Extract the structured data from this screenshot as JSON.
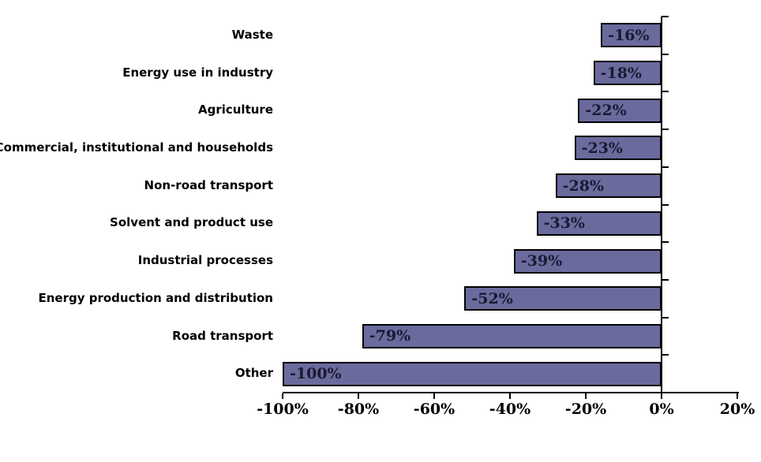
{
  "chart_data": {
    "type": "bar",
    "orientation": "horizontal",
    "title": "",
    "xlabel": "",
    "ylabel": "",
    "grid": false,
    "legend": false,
    "background_color": "#FFFFFF",
    "bar_fill_color": "#6A6A9D",
    "bar_border_color": "#000000",
    "value_label_color": "#1A1A33",
    "axis_color": "#000000",
    "xlim": [
      -100,
      20
    ],
    "categories": [
      "Waste",
      "Energy use in industry",
      "Agriculture",
      "Commercial, institutional and households",
      "Non-road transport",
      "Solvent and product use",
      "Industrial processes",
      "Energy production and distribution",
      "Road transport",
      "Other"
    ],
    "values": [
      -16,
      -18,
      -22,
      -23,
      -28,
      -33,
      -39,
      -52,
      -79,
      -100
    ],
    "value_labels": [
      "-16%",
      "-18%",
      "-22%",
      "-23%",
      "-28%",
      "-33%",
      "-39%",
      "-52%",
      "-79%",
      "-100%"
    ],
    "x_tick_values": [
      -100,
      -80,
      -60,
      -40,
      -20,
      0,
      20
    ],
    "x_ticks": [
      "-100%",
      "-80%",
      "-60%",
      "-40%",
      "-20%",
      "0%",
      "20%"
    ]
  }
}
